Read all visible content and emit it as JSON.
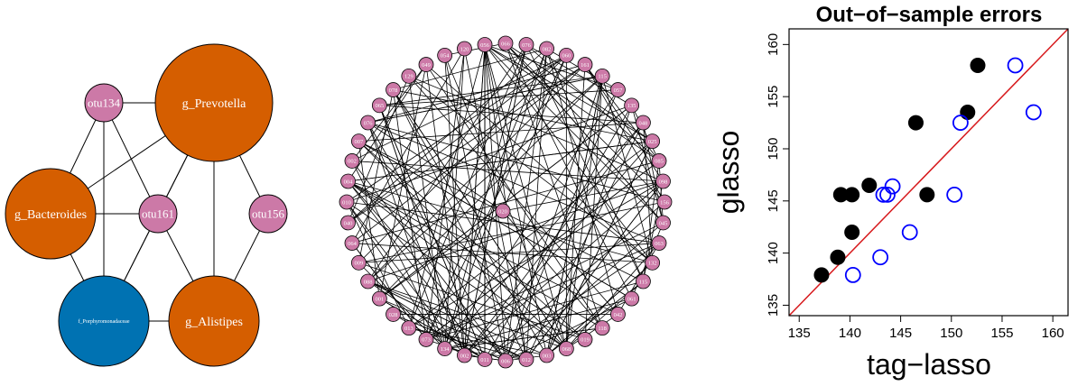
{
  "colors": {
    "orange": "#D55E00",
    "pink": "#CC79A7",
    "blue": "#0072B2",
    "red": "#D7191C",
    "black": "#000000",
    "open_blue": "#0000FF"
  },
  "network_small": {
    "nodes": [
      {
        "id": "otu134",
        "label": "otu134",
        "color": "pink",
        "size": "small"
      },
      {
        "id": "g_Prevotella",
        "label": "g_Prevotella",
        "color": "orange",
        "size": "large"
      },
      {
        "id": "g_Bacteroides",
        "label": "g_Bacteroides",
        "color": "orange",
        "size": "medium"
      },
      {
        "id": "otu161",
        "label": "otu161",
        "color": "pink",
        "size": "small"
      },
      {
        "id": "otu156",
        "label": "otu156",
        "color": "pink",
        "size": "small"
      },
      {
        "id": "f_Porphyromonadaceae",
        "label": "f_Porphyromonadaceae",
        "color": "blue",
        "size": "medium"
      },
      {
        "id": "g_Alistipes",
        "label": "g_Alistipes",
        "color": "orange",
        "size": "medium"
      }
    ],
    "edges": [
      [
        "otu134",
        "g_Prevotella"
      ],
      [
        "otu134",
        "g_Bacteroides"
      ],
      [
        "otu134",
        "otu161"
      ],
      [
        "otu134",
        "f_Porphyromonadaceae"
      ],
      [
        "g_Prevotella",
        "g_Bacteroides"
      ],
      [
        "g_Prevotella",
        "otu161"
      ],
      [
        "g_Prevotella",
        "otu156"
      ],
      [
        "g_Prevotella",
        "f_Porphyromonadaceae"
      ],
      [
        "g_Prevotella",
        "g_Alistipes"
      ],
      [
        "g_Bacteroides",
        "otu161"
      ],
      [
        "g_Bacteroides",
        "f_Porphyromonadaceae"
      ],
      [
        "otu161",
        "g_Alistipes"
      ],
      [
        "otu161",
        "f_Porphyromonadaceae"
      ],
      [
        "otu156",
        "g_Alistipes"
      ],
      [
        "f_Porphyromonadaceae",
        "g_Alistipes"
      ]
    ]
  },
  "network_large": {
    "ring_labels": [
      "066",
      "076",
      "082",
      "060",
      "161",
      "115",
      "057",
      "135",
      "048",
      "025",
      "085",
      "098",
      "156",
      "045",
      "063",
      "132",
      "115",
      "061",
      "042",
      "118",
      "019",
      "068",
      "003",
      "012",
      "006",
      "011",
      "002",
      "134",
      "073",
      "013",
      "028",
      "001",
      "088",
      "009",
      "064",
      "040",
      "010",
      "004",
      "002",
      "007",
      "076",
      "065",
      "078",
      "129",
      "049",
      "054",
      "120",
      "056"
    ],
    "center_label": "020"
  },
  "chart_data": {
    "type": "scatter",
    "title": "Out−of−sample errors",
    "xlabel": "tag−lasso",
    "ylabel": "glasso",
    "xlim": [
      134,
      161.5
    ],
    "ylim": [
      134,
      161.5
    ],
    "xticks": [
      135,
      140,
      145,
      150,
      155,
      160
    ],
    "yticks": [
      135,
      140,
      145,
      150,
      155,
      160
    ],
    "reference_line": {
      "from": [
        134,
        134
      ],
      "to": [
        161.5,
        161.5
      ]
    },
    "series": [
      {
        "marker": "filled-circle",
        "color": "black",
        "x": [
          137.2,
          138.8,
          139.1,
          140.2,
          140.2,
          141.9,
          146.5,
          147.6,
          151.6,
          152.6
        ],
        "y": [
          137.9,
          139.6,
          145.6,
          142.0,
          145.6,
          146.5,
          152.5,
          145.6,
          153.5,
          158.0
        ]
      },
      {
        "marker": "open-circle",
        "color": "open_blue",
        "x": [
          140.3,
          143.0,
          143.3,
          143.7,
          144.2,
          145.9,
          150.3,
          150.9,
          156.3,
          158.1
        ],
        "y": [
          137.9,
          139.6,
          145.6,
          145.6,
          146.4,
          142.0,
          145.6,
          152.5,
          158.0,
          153.5
        ]
      }
    ]
  }
}
